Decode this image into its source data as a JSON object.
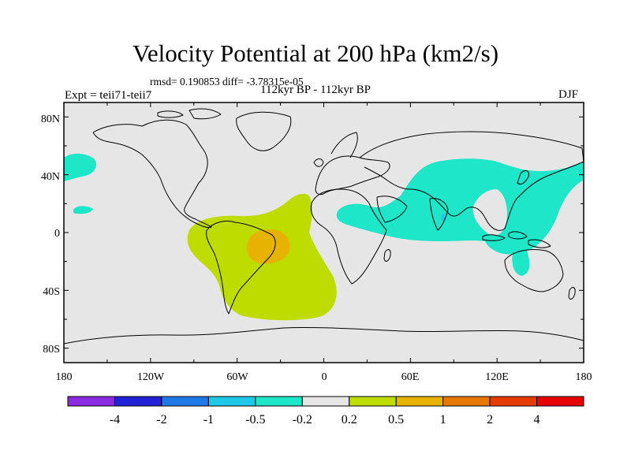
{
  "title": "Velocity Potential at 200 hPa (km2/s)",
  "stats": "rmsd= 0.190853 diff= -3.78315e-05",
  "left_label": "Expt = teii71-teii7",
  "subtitle": "112kyr BP - 112kyr BP",
  "right_label": "DJF",
  "map": {
    "projection": "cylindrical equidistant",
    "lon_range": [
      -180,
      180
    ],
    "lat_range": [
      -90,
      90
    ],
    "background_color": "#e6e6e6",
    "coastline_color": "#000000",
    "lon_tick_labels": [
      "180",
      "120W",
      "60W",
      "0",
      "60E",
      "120E",
      "180"
    ],
    "lat_tick_labels": [
      "80N",
      "40N",
      "0",
      "40S",
      "80S"
    ]
  },
  "colorbar": {
    "colors": [
      "#8a2be2",
      "#2121d6",
      "#1e78e6",
      "#1ec8e6",
      "#1ee6c8",
      "#e6e6e6",
      "#bedc00",
      "#e6b400",
      "#e67800",
      "#e63c00",
      "#e60000"
    ],
    "labels": [
      "-4",
      "-2",
      "-1",
      "-0.5",
      "-0.2",
      "0.2",
      "0.5",
      "1",
      "2",
      "4"
    ]
  },
  "shaded_regions": [
    {
      "name": "south-america-atlantic",
      "level": "0.2 to 0.5",
      "color": "#bedc00"
    },
    {
      "name": "brazil-core",
      "level": "0.5 to 1",
      "color": "#e6b400"
    },
    {
      "name": "africa-indian-pacific",
      "level": "-0.5 to -0.2",
      "color": "#1ee6c8"
    },
    {
      "name": "north-pacific-east",
      "level": "-0.5 to -0.2",
      "color": "#1ee6c8"
    },
    {
      "name": "pacific-small",
      "level": "-0.5 to -0.2",
      "color": "#1ee6c8"
    },
    {
      "name": "indian-ocean-dot",
      "level": "-1 to -0.5",
      "color": "#1ec8e6"
    }
  ]
}
